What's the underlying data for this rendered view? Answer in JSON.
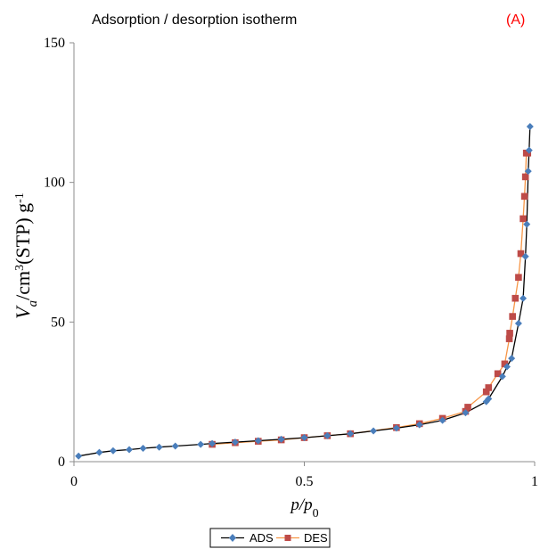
{
  "colors": {
    "ads": "#4a7ebb",
    "ads_line": "#000000",
    "des": "#be4b48",
    "des_line": "#f79646",
    "panel": "#ff0000"
  },
  "chart_data": {
    "type": "line",
    "title": "Adsorption / desorption isotherm",
    "panel_label": "(A)",
    "xlabel_main": "p",
    "xlabel_sub_base": "/p",
    "xlabel_sub": "0",
    "ylabel_v": "V",
    "ylabel_a": "a",
    "ylabel_cm": "/cm",
    "ylabel_3": "3",
    "ylabel_rest": "(STP) g",
    "ylabel_exp": "-1",
    "xlim": [
      0,
      1
    ],
    "ylim": [
      0,
      150
    ],
    "xticks": [
      0,
      0.5,
      1
    ],
    "xtick_labels": [
      "0",
      "0.5",
      "1"
    ],
    "yticks": [
      0,
      50,
      100,
      150
    ],
    "ytick_labels": [
      "0",
      "50",
      "100",
      "150"
    ],
    "legend_position": "bottom-center",
    "grid": false,
    "series": [
      {
        "name": "ADS",
        "marker": "diamond",
        "x": [
          0.01,
          0.055,
          0.085,
          0.12,
          0.15,
          0.185,
          0.22,
          0.275,
          0.3,
          0.35,
          0.4,
          0.45,
          0.5,
          0.55,
          0.6,
          0.65,
          0.7,
          0.75,
          0.8,
          0.85,
          0.895,
          0.9,
          0.93,
          0.94,
          0.95,
          0.965,
          0.975,
          0.98,
          0.983,
          0.986,
          0.988,
          0.99
        ],
        "y": [
          2.0,
          3.3,
          3.9,
          4.3,
          4.8,
          5.2,
          5.6,
          6.2,
          6.5,
          7.0,
          7.5,
          8.0,
          8.6,
          9.3,
          10.0,
          11.0,
          12.0,
          13.2,
          14.8,
          17.5,
          21.5,
          22.5,
          30.5,
          34.0,
          37.0,
          49.5,
          58.5,
          73.5,
          85.0,
          104.0,
          111.5,
          120.0
        ]
      },
      {
        "name": "DES",
        "marker": "square",
        "x": [
          0.3,
          0.35,
          0.4,
          0.45,
          0.5,
          0.55,
          0.6,
          0.7,
          0.75,
          0.8,
          0.85,
          0.855,
          0.895,
          0.9,
          0.92,
          0.935,
          0.945,
          0.946,
          0.952,
          0.958,
          0.965,
          0.97,
          0.975,
          0.978,
          0.98,
          0.982,
          0.985
        ],
        "y": [
          6.2,
          6.8,
          7.3,
          7.8,
          8.6,
          9.3,
          10.0,
          12.2,
          13.6,
          15.5,
          18.0,
          19.5,
          25.0,
          26.5,
          31.5,
          35.0,
          44.0,
          46.0,
          52.0,
          58.5,
          66.0,
          74.5,
          87.0,
          95.0,
          102.0,
          110.5,
          110.5
        ]
      }
    ]
  }
}
